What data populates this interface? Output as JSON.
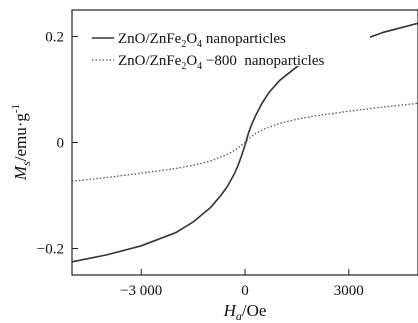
{
  "chart_data": {
    "type": "line",
    "title": "",
    "xlabel_main": "H",
    "xlabel_sub": "a",
    "xlabel_unit": "/Oe",
    "ylabel_main": "M",
    "ylabel_sub": "s",
    "ylabel_unit": "/emu·g",
    "ylabel_exp": "-1",
    "xlim": [
      -5000,
      5000
    ],
    "ylim": [
      -0.25,
      0.25
    ],
    "x_ticks": [
      -3000,
      0,
      3000
    ],
    "x_tick_labels": [
      "−3 000",
      "0",
      "3000"
    ],
    "y_ticks": [
      -0.2,
      0,
      0.2
    ],
    "y_tick_labels": [
      "−0.2",
      "0",
      "0.2"
    ],
    "grid": false,
    "legend_position": "top-left",
    "series": [
      {
        "name_pre": "ZnO/ZnFe",
        "name_sub1": "2",
        "name_mid": "O",
        "name_sub2": "4",
        "name_post": " nanoparticles",
        "style": "solid",
        "color": "#333333",
        "x": [
          -5000,
          -4000,
          -3000,
          -2000,
          -1500,
          -1000,
          -700,
          -500,
          -300,
          -200,
          -100,
          0,
          100,
          200,
          300,
          500,
          700,
          1000,
          1500,
          2000,
          2500,
          3000,
          3500,
          4000,
          5000
        ],
        "y": [
          -0.225,
          -0.212,
          -0.195,
          -0.17,
          -0.15,
          -0.123,
          -0.1,
          -0.082,
          -0.058,
          -0.043,
          -0.025,
          -0.005,
          0.018,
          0.035,
          0.05,
          0.075,
          0.095,
          0.117,
          0.143,
          0.162,
          0.177,
          0.188,
          0.196,
          0.208,
          0.225
        ]
      },
      {
        "name_pre": "ZnO/ZnFe",
        "name_sub1": "2",
        "name_mid": "O",
        "name_sub2": "4",
        "name_post": " −800  nanoparticles",
        "style": "dotted",
        "color": "#555555",
        "x": [
          -5000,
          -4000,
          -3000,
          -2000,
          -1500,
          -1000,
          -500,
          -300,
          -100,
          0,
          100,
          300,
          500,
          1000,
          1500,
          2000,
          3000,
          4000,
          5000
        ],
        "y": [
          -0.073,
          -0.066,
          -0.058,
          -0.049,
          -0.043,
          -0.035,
          -0.022,
          -0.015,
          -0.005,
          0.0,
          0.007,
          0.017,
          0.024,
          0.036,
          0.044,
          0.05,
          0.059,
          0.067,
          0.074
        ]
      }
    ]
  }
}
